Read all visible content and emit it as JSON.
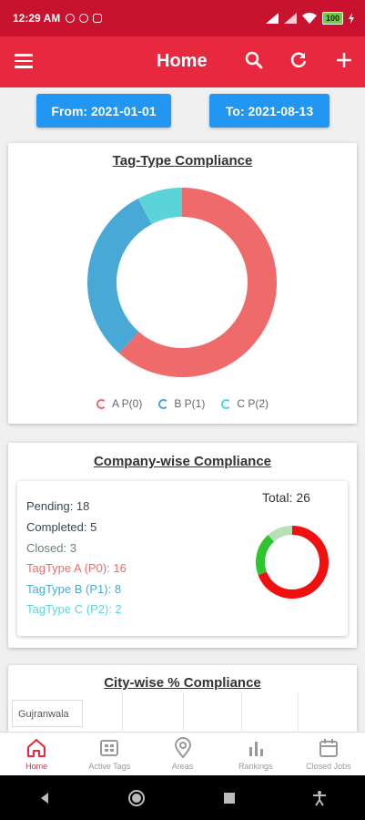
{
  "status_bar": {
    "time": "12:29 AM",
    "battery": "100"
  },
  "app_bar": {
    "title": "Home"
  },
  "date_filter": {
    "from_label": "From: 2021-01-01",
    "to_label": "To: 2021-08-13"
  },
  "tag_type_card": {
    "title": "Tag-Type Compliance",
    "legend": [
      {
        "label": "A P(0)",
        "color": "#ef6b6b"
      },
      {
        "label": "B P(1)",
        "color": "#48a9d6"
      },
      {
        "label": "C P(2)",
        "color": "#5bd4d9"
      }
    ]
  },
  "chart_data": {
    "type": "pie",
    "title": "Tag-Type Compliance",
    "categories": [
      "A P(0)",
      "B P(1)",
      "C P(2)"
    ],
    "values": [
      16,
      8,
      2
    ],
    "colors": [
      "#ef6b6b",
      "#48a9d6",
      "#5bd4d9"
    ],
    "donut": true,
    "legend_position": "bottom"
  },
  "company_card": {
    "title": "Company-wise Compliance",
    "total": "Total: 26",
    "stats": [
      {
        "text": "Pending: 18",
        "color": "#37474f"
      },
      {
        "text": "Completed: 5",
        "color": "#37474f"
      },
      {
        "text": "Closed: 3",
        "color": "#6b7f7f"
      },
      {
        "text": "TagType A (P0): 16",
        "color": "#ef6b6b"
      },
      {
        "text": "TagType B (P1): 8",
        "color": "#48a9d6"
      },
      {
        "text": "TagType C (P2): 2",
        "color": "#5bd4d9"
      }
    ],
    "mini_donut": {
      "pending": 18,
      "completed": 5,
      "closed": 3,
      "colors": [
        "#f20f0f",
        "#2ec52e",
        "#b8e0b8"
      ]
    }
  },
  "city_card": {
    "title": "City-wise % Compliance",
    "tab": "Gujranwala"
  },
  "bottom_nav": [
    {
      "label": "Home",
      "icon": "home-icon"
    },
    {
      "label": "Active Tags",
      "icon": "tags-icon"
    },
    {
      "label": "Areas",
      "icon": "location-icon"
    },
    {
      "label": "Rankings",
      "icon": "bar-chart-icon"
    },
    {
      "label": "Closed Jobs",
      "icon": "calendar-icon"
    }
  ]
}
